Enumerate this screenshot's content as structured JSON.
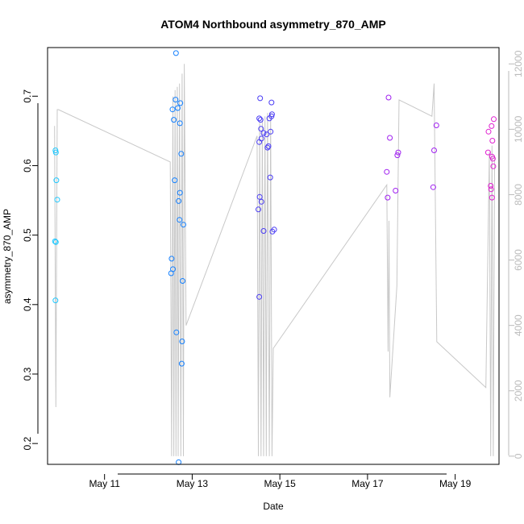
{
  "chart_data": {
    "type": "scatter",
    "title": "ATOM4 Northbound asymmetry_870_AMP",
    "xlabel": "Date",
    "ylabel": "asymmetry_870_AMP",
    "xlim": [
      9.7,
      20.0
    ],
    "ylim": [
      0.17,
      0.77
    ],
    "y2lim": [
      -250,
      12500
    ],
    "x_ticks": [
      11,
      13,
      15,
      17,
      19
    ],
    "x_tick_labels": [
      "May 11",
      "May 13",
      "May 15",
      "May 17",
      "May 19"
    ],
    "y_ticks": [
      0.2,
      0.3,
      0.4,
      0.5,
      0.6,
      0.7
    ],
    "y_tick_labels": [
      "0.2",
      "0.3",
      "0.4",
      "0.5",
      "0.6",
      "0.7"
    ],
    "y2_ticks": [
      0,
      2000,
      4000,
      6000,
      8000,
      10000,
      12000
    ],
    "y2_tick_labels": [
      "0",
      "2000",
      "4000",
      "6000",
      "8000",
      "10000",
      "12000"
    ],
    "grid": false,
    "points": [
      {
        "x": 9.88,
        "y": 0.622,
        "color": "#1ec8ff"
      },
      {
        "x": 9.89,
        "y": 0.619,
        "color": "#1ec8ff"
      },
      {
        "x": 9.9,
        "y": 0.579,
        "color": "#1ec8ff"
      },
      {
        "x": 9.92,
        "y": 0.551,
        "color": "#1ec8ff"
      },
      {
        "x": 9.87,
        "y": 0.491,
        "color": "#1ec8ff"
      },
      {
        "x": 9.89,
        "y": 0.49,
        "color": "#1ec8ff"
      },
      {
        "x": 9.88,
        "y": 0.406,
        "color": "#1ec8ff"
      },
      {
        "x": 12.63,
        "y": 0.762,
        "color": "#1480ff"
      },
      {
        "x": 12.62,
        "y": 0.695,
        "color": "#1480ff"
      },
      {
        "x": 12.73,
        "y": 0.69,
        "color": "#1480ff"
      },
      {
        "x": 12.67,
        "y": 0.683,
        "color": "#1480ff"
      },
      {
        "x": 12.55,
        "y": 0.681,
        "color": "#1480ff"
      },
      {
        "x": 12.58,
        "y": 0.666,
        "color": "#1480ff"
      },
      {
        "x": 12.72,
        "y": 0.661,
        "color": "#1480ff"
      },
      {
        "x": 12.75,
        "y": 0.617,
        "color": "#1480ff"
      },
      {
        "x": 12.6,
        "y": 0.579,
        "color": "#1480ff"
      },
      {
        "x": 12.72,
        "y": 0.561,
        "color": "#1480ff"
      },
      {
        "x": 12.69,
        "y": 0.549,
        "color": "#1480ff"
      },
      {
        "x": 12.71,
        "y": 0.522,
        "color": "#1480ff"
      },
      {
        "x": 12.8,
        "y": 0.515,
        "color": "#1480ff"
      },
      {
        "x": 12.53,
        "y": 0.466,
        "color": "#1480ff"
      },
      {
        "x": 12.56,
        "y": 0.451,
        "color": "#1480ff"
      },
      {
        "x": 12.52,
        "y": 0.445,
        "color": "#1480ff"
      },
      {
        "x": 12.78,
        "y": 0.434,
        "color": "#1480ff"
      },
      {
        "x": 12.64,
        "y": 0.36,
        "color": "#1480ff"
      },
      {
        "x": 12.77,
        "y": 0.347,
        "color": "#1480ff"
      },
      {
        "x": 12.76,
        "y": 0.315,
        "color": "#1480ff"
      },
      {
        "x": 12.69,
        "y": 0.173,
        "color": "#1480ff"
      },
      {
        "x": 14.55,
        "y": 0.697,
        "color": "#4a3cf5"
      },
      {
        "x": 14.81,
        "y": 0.691,
        "color": "#4a3cf5"
      },
      {
        "x": 14.82,
        "y": 0.674,
        "color": "#4a3cf5"
      },
      {
        "x": 14.81,
        "y": 0.671,
        "color": "#4a3cf5"
      },
      {
        "x": 14.53,
        "y": 0.668,
        "color": "#4a3cf5"
      },
      {
        "x": 14.76,
        "y": 0.668,
        "color": "#4a3cf5"
      },
      {
        "x": 14.56,
        "y": 0.666,
        "color": "#4a3cf5"
      },
      {
        "x": 14.57,
        "y": 0.653,
        "color": "#4a3cf5"
      },
      {
        "x": 14.79,
        "y": 0.649,
        "color": "#4a3cf5"
      },
      {
        "x": 14.63,
        "y": 0.647,
        "color": "#4a3cf5"
      },
      {
        "x": 14.7,
        "y": 0.645,
        "color": "#4a3cf5"
      },
      {
        "x": 14.58,
        "y": 0.639,
        "color": "#4a3cf5"
      },
      {
        "x": 14.53,
        "y": 0.634,
        "color": "#4a3cf5"
      },
      {
        "x": 14.74,
        "y": 0.628,
        "color": "#4a3cf5"
      },
      {
        "x": 14.72,
        "y": 0.626,
        "color": "#4a3cf5"
      },
      {
        "x": 14.78,
        "y": 0.583,
        "color": "#4a3cf5"
      },
      {
        "x": 14.54,
        "y": 0.555,
        "color": "#4a3cf5"
      },
      {
        "x": 14.58,
        "y": 0.548,
        "color": "#4a3cf5"
      },
      {
        "x": 14.51,
        "y": 0.537,
        "color": "#4a3cf5"
      },
      {
        "x": 14.87,
        "y": 0.508,
        "color": "#4a3cf5"
      },
      {
        "x": 14.63,
        "y": 0.506,
        "color": "#4a3cf5"
      },
      {
        "x": 14.83,
        "y": 0.505,
        "color": "#4a3cf5"
      },
      {
        "x": 14.53,
        "y": 0.411,
        "color": "#4a3cf5"
      },
      {
        "x": 17.48,
        "y": 0.698,
        "color": "#a020f0"
      },
      {
        "x": 17.51,
        "y": 0.64,
        "color": "#a020f0"
      },
      {
        "x": 17.7,
        "y": 0.619,
        "color": "#a020f0"
      },
      {
        "x": 17.68,
        "y": 0.615,
        "color": "#a020f0"
      },
      {
        "x": 17.44,
        "y": 0.591,
        "color": "#a020f0"
      },
      {
        "x": 17.64,
        "y": 0.564,
        "color": "#a020f0"
      },
      {
        "x": 17.46,
        "y": 0.554,
        "color": "#a020f0"
      },
      {
        "x": 18.57,
        "y": 0.658,
        "color": "#a020f0"
      },
      {
        "x": 18.52,
        "y": 0.622,
        "color": "#a020f0"
      },
      {
        "x": 18.5,
        "y": 0.569,
        "color": "#a020f0"
      },
      {
        "x": 19.88,
        "y": 0.667,
        "color": "#e020d0"
      },
      {
        "x": 19.83,
        "y": 0.657,
        "color": "#e020d0"
      },
      {
        "x": 19.76,
        "y": 0.649,
        "color": "#e020d0"
      },
      {
        "x": 19.85,
        "y": 0.636,
        "color": "#e020d0"
      },
      {
        "x": 19.75,
        "y": 0.619,
        "color": "#e020d0"
      },
      {
        "x": 19.84,
        "y": 0.613,
        "color": "#e020d0"
      },
      {
        "x": 19.86,
        "y": 0.61,
        "color": "#e020d0"
      },
      {
        "x": 19.87,
        "y": 0.599,
        "color": "#e020d0"
      },
      {
        "x": 19.81,
        "y": 0.571,
        "color": "#e020d0"
      },
      {
        "x": 19.82,
        "y": 0.566,
        "color": "#e020d0"
      },
      {
        "x": 19.84,
        "y": 0.554,
        "color": "#e020d0"
      }
    ],
    "secondary_series": {
      "color": "#c8c8c8",
      "points": [
        [
          9.86,
          10100
        ],
        [
          9.89,
          1500
        ],
        [
          9.92,
          10600
        ],
        [
          9.95,
          10600
        ],
        [
          12.5,
          9000
        ],
        [
          12.53,
          0
        ],
        [
          12.56,
          11000
        ],
        [
          12.58,
          0
        ],
        [
          12.61,
          11200
        ],
        [
          12.63,
          0
        ],
        [
          12.66,
          11300
        ],
        [
          12.68,
          0
        ],
        [
          12.71,
          11400
        ],
        [
          12.74,
          0
        ],
        [
          12.77,
          11700
        ],
        [
          12.8,
          0
        ],
        [
          12.82,
          12000
        ],
        [
          12.86,
          4000
        ],
        [
          14.48,
          9800
        ],
        [
          14.51,
          0
        ],
        [
          14.54,
          10200
        ],
        [
          14.57,
          0
        ],
        [
          14.6,
          10300
        ],
        [
          14.63,
          0
        ],
        [
          14.66,
          10400
        ],
        [
          14.69,
          0
        ],
        [
          14.72,
          10500
        ],
        [
          14.76,
          0
        ],
        [
          14.79,
          10500
        ],
        [
          14.82,
          0
        ],
        [
          14.85,
          3300
        ],
        [
          17.44,
          8300
        ],
        [
          17.47,
          3200
        ],
        [
          17.49,
          7200
        ],
        [
          17.51,
          1800
        ],
        [
          17.67,
          5200
        ],
        [
          17.72,
          10900
        ],
        [
          18.47,
          10400
        ],
        [
          18.52,
          11400
        ],
        [
          18.58,
          3500
        ],
        [
          19.7,
          2100
        ],
        [
          19.78,
          9300
        ],
        [
          19.81,
          0
        ],
        [
          19.84,
          9500
        ],
        [
          19.87,
          0
        ],
        [
          19.9,
          9200
        ]
      ]
    }
  }
}
